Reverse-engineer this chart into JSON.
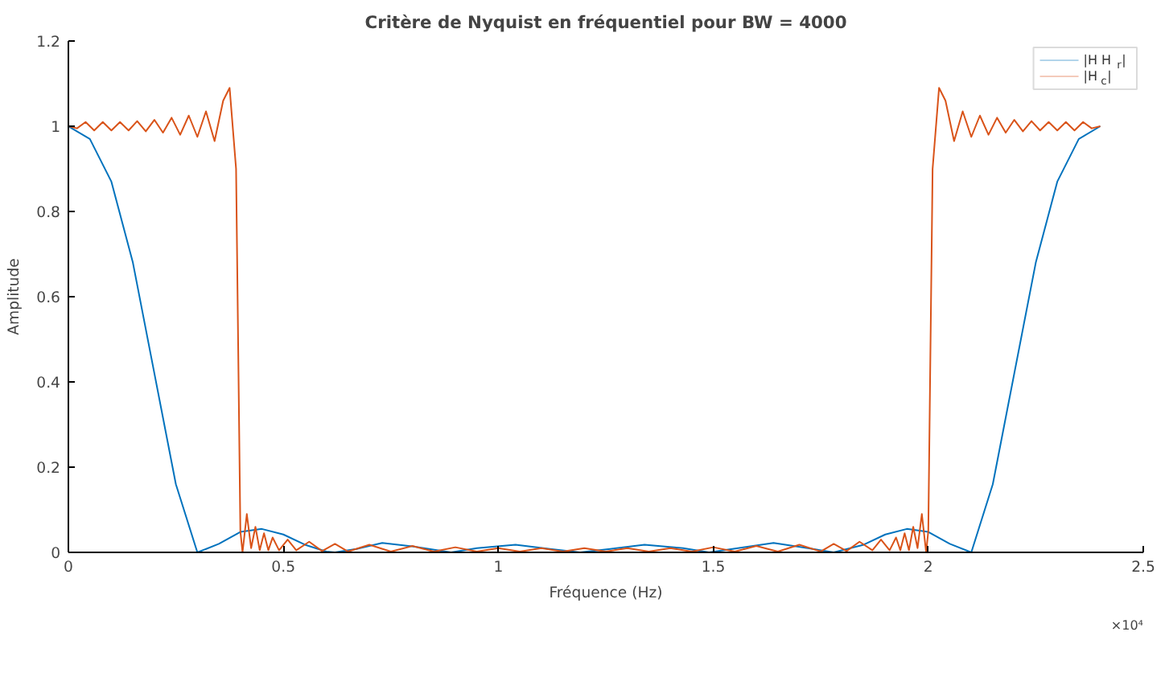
{
  "chart_data": {
    "type": "line",
    "title": "Critère de Nyquist en fréquentiel pour BW = 4000",
    "xlabel": "Fréquence (Hz)",
    "ylabel": "Amplitude",
    "annotations": [
      "×10⁴"
    ],
    "xlim": [
      0,
      2.5
    ],
    "xticks": [
      0,
      0.5,
      1,
      1.5,
      2,
      2.5
    ],
    "ylim": [
      0,
      1.2
    ],
    "yticks": [
      0,
      0.2,
      0.4,
      0.6,
      0.8,
      1,
      1.2
    ],
    "grid": false,
    "legend": "top right",
    "series": [
      {
        "name": "|H H$_{r}$|",
        "color": "#0072bd",
        "x": [
          0,
          0.05,
          0.1,
          0.15,
          0.2,
          0.25,
          0.3,
          0.35,
          0.4,
          0.45,
          0.5,
          0.55,
          0.6,
          0.62,
          0.67,
          0.73,
          0.8,
          0.89,
          0.95,
          1.04,
          1.12,
          1.19,
          1.26,
          1.34,
          1.43,
          1.49,
          1.57,
          1.64,
          1.72,
          1.78,
          1.85,
          1.9,
          1.95,
          2.0,
          2.05,
          2.1,
          2.15,
          2.2,
          2.25,
          2.3,
          2.35,
          2.4
        ],
        "values": [
          1,
          0.97,
          0.87,
          0.68,
          0.42,
          0.16,
          0,
          0.02,
          0.048,
          0.055,
          0.042,
          0.018,
          0.002,
          0,
          0.008,
          0.022,
          0.014,
          0,
          0.01,
          0.018,
          0.008,
          0,
          0.008,
          0.018,
          0.01,
          0,
          0.012,
          0.022,
          0.01,
          0,
          0.018,
          0.042,
          0.055,
          0.048,
          0.02,
          0,
          0.16,
          0.42,
          0.68,
          0.87,
          0.97,
          1
        ]
      },
      {
        "name": "|H$_{c}$|",
        "color": "#d95319",
        "x": [
          0,
          0.02,
          0.04,
          0.06,
          0.08,
          0.1,
          0.12,
          0.14,
          0.16,
          0.18,
          0.2,
          0.22,
          0.24,
          0.26,
          0.28,
          0.3,
          0.32,
          0.34,
          0.36,
          0.375,
          0.39,
          0.4,
          0.405,
          0.415,
          0.425,
          0.435,
          0.445,
          0.455,
          0.465,
          0.475,
          0.49,
          0.51,
          0.53,
          0.56,
          0.59,
          0.62,
          0.65,
          0.7,
          0.75,
          0.8,
          0.85,
          0.9,
          0.95,
          1.0,
          1.05,
          1.1,
          1.15,
          1.2,
          1.25,
          1.3,
          1.35,
          1.4,
          1.45,
          1.5,
          1.55,
          1.6,
          1.65,
          1.7,
          1.75,
          1.78,
          1.81,
          1.84,
          1.87,
          1.89,
          1.91,
          1.925,
          1.935,
          1.945,
          1.955,
          1.965,
          1.975,
          1.985,
          1.995,
          2.0,
          2.01,
          2.025,
          2.04,
          2.06,
          2.08,
          2.1,
          2.12,
          2.14,
          2.16,
          2.18,
          2.2,
          2.22,
          2.24,
          2.26,
          2.28,
          2.3,
          2.32,
          2.34,
          2.36,
          2.38,
          2.4
        ],
        "values": [
          1,
          0.995,
          1.01,
          0.99,
          1.01,
          0.99,
          1.01,
          0.99,
          1.012,
          0.988,
          1.015,
          0.985,
          1.02,
          0.98,
          1.025,
          0.975,
          1.035,
          0.965,
          1.06,
          1.09,
          0.9,
          0.05,
          0,
          0.09,
          0.01,
          0.06,
          0.005,
          0.045,
          0.005,
          0.035,
          0.005,
          0.03,
          0.005,
          0.025,
          0.003,
          0.02,
          0.002,
          0.018,
          0.002,
          0.015,
          0.002,
          0.012,
          0.002,
          0.01,
          0.002,
          0.01,
          0.002,
          0.01,
          0.002,
          0.01,
          0.002,
          0.01,
          0.002,
          0.012,
          0.002,
          0.015,
          0.002,
          0.018,
          0.002,
          0.02,
          0.003,
          0.025,
          0.005,
          0.03,
          0.005,
          0.035,
          0.005,
          0.045,
          0.005,
          0.06,
          0.01,
          0.09,
          0,
          0.05,
          0.9,
          1.09,
          1.06,
          0.965,
          1.035,
          0.975,
          1.025,
          0.98,
          1.02,
          0.985,
          1.015,
          0.988,
          1.012,
          0.99,
          1.01,
          0.99,
          1.01,
          0.99,
          1.01,
          0.995,
          1
        ]
      }
    ]
  }
}
